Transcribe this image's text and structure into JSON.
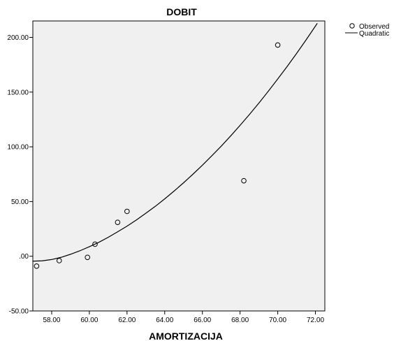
{
  "chart_data": {
    "type": "scatter",
    "title": "DOBIT",
    "xlabel": "AMORTIZACIJA",
    "ylabel": "",
    "xlim": [
      57.0,
      72.5
    ],
    "ylim": [
      -50,
      215
    ],
    "xticks": [
      58,
      60,
      62,
      64,
      66,
      68,
      70,
      72
    ],
    "xtick_labels": [
      "58.00",
      "60.00",
      "62.00",
      "64.00",
      "66.00",
      "68.00",
      "70.00",
      "72.00"
    ],
    "yticks": [
      -50,
      0,
      50,
      100,
      150,
      200
    ],
    "ytick_labels": [
      "-50.00",
      ".00",
      "50.00",
      "100.00",
      "150.00",
      "200.00"
    ],
    "grid": false,
    "legend_position": "top-right-outside",
    "colors": {
      "background": "#f0f0f0",
      "marks": "#000000"
    },
    "series": [
      {
        "name": "Observed",
        "kind": "points",
        "x": [
          57.2,
          58.4,
          59.9,
          60.3,
          61.5,
          62.0,
          68.2,
          70.0
        ],
        "y": [
          -9,
          -4,
          -1,
          11,
          31,
          41,
          69,
          193
        ]
      },
      {
        "name": "Quadratic",
        "kind": "line",
        "x": [
          57.0,
          57.5,
          58.0,
          58.5,
          59.0,
          59.5,
          60.0,
          60.5,
          61.0,
          61.5,
          62.0,
          62.5,
          63.0,
          63.5,
          64.0,
          64.5,
          65.0,
          65.5,
          66.0,
          66.5,
          67.0,
          67.5,
          68.0,
          68.5,
          69.0,
          69.5,
          70.0,
          70.5,
          71.0,
          71.5,
          72.0,
          72.1
        ],
        "y": [
          -4.5,
          -4.2,
          -3.0,
          -1.0,
          1.8,
          5.0,
          8.7,
          12.7,
          17.3,
          22.3,
          27.5,
          33.2,
          39.3,
          45.6,
          52.4,
          59.6,
          67.1,
          75.0,
          83.2,
          91.8,
          100.6,
          109.9,
          119.6,
          129.6,
          140.0,
          150.8,
          162.0,
          173.4,
          185.3,
          197.6,
          210.3,
          212.9
        ]
      }
    ]
  }
}
